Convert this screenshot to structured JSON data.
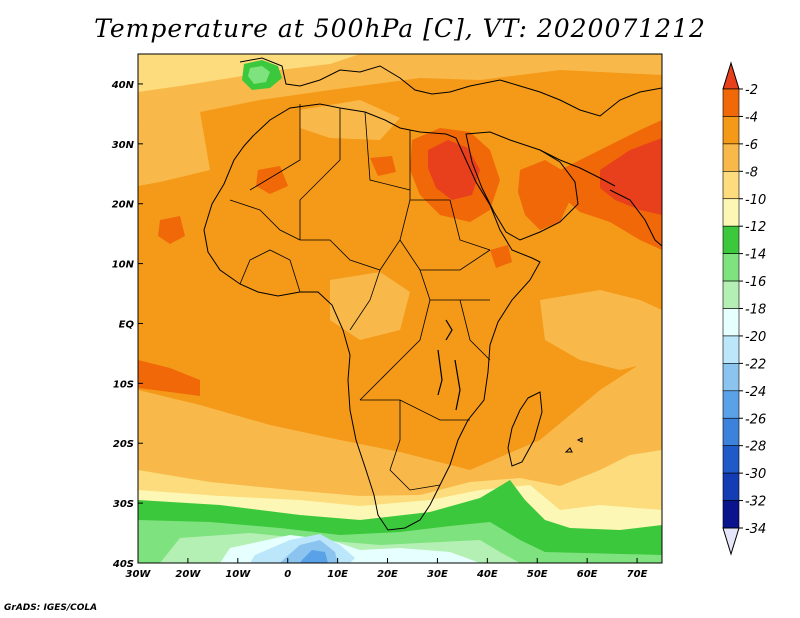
{
  "title": "Temperature at 500hPa [C], VT: 2020071212",
  "credit": "GrADS: IGES/COLA",
  "map": {
    "lon_range": [
      -30,
      75
    ],
    "lat_range": [
      -40,
      45
    ],
    "x_ticks": [
      {
        "value": -30,
        "label": "30W"
      },
      {
        "value": -20,
        "label": "20W"
      },
      {
        "value": -10,
        "label": "10W"
      },
      {
        "value": 0,
        "label": "0"
      },
      {
        "value": 10,
        "label": "10E"
      },
      {
        "value": 20,
        "label": "20E"
      },
      {
        "value": 30,
        "label": "30E"
      },
      {
        "value": 40,
        "label": "40E"
      },
      {
        "value": 50,
        "label": "50E"
      },
      {
        "value": 60,
        "label": "60E"
      },
      {
        "value": 70,
        "label": "70E"
      }
    ],
    "y_ticks": [
      {
        "value": 40,
        "label": "40N"
      },
      {
        "value": 30,
        "label": "30N"
      },
      {
        "value": 20,
        "label": "20N"
      },
      {
        "value": 10,
        "label": "10N"
      },
      {
        "value": 0,
        "label": "EQ"
      },
      {
        "value": -10,
        "label": "10S"
      },
      {
        "value": -20,
        "label": "20S"
      },
      {
        "value": -30,
        "label": "30S"
      },
      {
        "value": -40,
        "label": "40S"
      }
    ]
  },
  "colorbar": {
    "labels": [
      "-2",
      "-4",
      "-6",
      "-8",
      "-10",
      "-12",
      "-14",
      "-16",
      "-18",
      "-20",
      "-22",
      "-24",
      "-26",
      "-28",
      "-30",
      "-32",
      "-34"
    ],
    "colors": [
      "#e8401c",
      "#f06808",
      "#f49a18",
      "#f9b94a",
      "#fcdc7c",
      "#fcf7b4",
      "#3cc83c",
      "#7ee27e",
      "#b4f0b4",
      "#e6ffff",
      "#bce6fa",
      "#8cc4f0",
      "#5aa2e8",
      "#3c82dc",
      "#1e5ac8",
      "#143cb4",
      "#0a148c"
    ],
    "overflow_high": "#e8401c",
    "underflow_low": "#e6e6fa"
  },
  "field_colors": {
    "very_warm": "#e8401c",
    "warm": "#f06808",
    "base": "#f49a18",
    "mild": "#f9b94a",
    "cool": "#fcdc7c",
    "cooler": "#fcf7b4",
    "green_dark": "#3cc83c",
    "green_light": "#7ee27e",
    "green_pale": "#b4f0b4",
    "ice": "#e6ffff",
    "blue_pale": "#bce6fa",
    "blue": "#8cc4f0",
    "blue_mid": "#5aa2e8"
  },
  "coastline_color": "#000000"
}
